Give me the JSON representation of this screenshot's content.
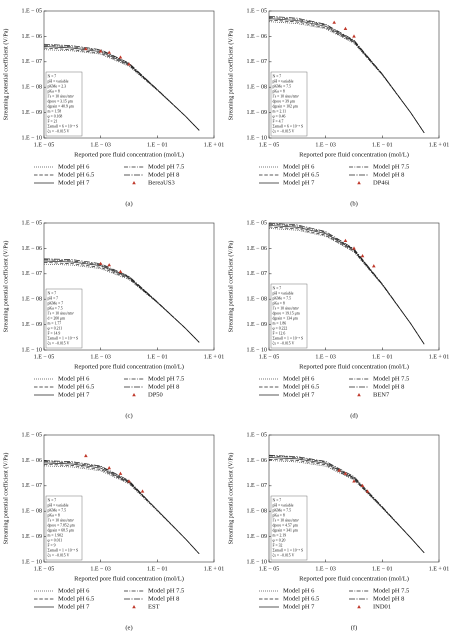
{
  "chart_data": [
    {
      "type": "line",
      "caption": "(a)",
      "ylabel": "Streaming potential coefficient (V/Pa)",
      "xlabel": "Reported pore fluid concentration (mol/L)",
      "xscale": "log",
      "yscale": "log",
      "xlim": [
        1e-05,
        10
      ],
      "ylim": [
        1e-10,
        1e-05
      ],
      "xticks": [
        {
          "value": 1e-05,
          "label": "1.E − 05"
        },
        {
          "value": 0.001,
          "label": "1.E − 03"
        },
        {
          "value": 0.1,
          "label": "1.E − 01"
        },
        {
          "value": 10,
          "label": "1.E + 01"
        }
      ],
      "yticks": [
        {
          "value": 1e-05,
          "label": "1.E − 05"
        },
        {
          "value": 1e-06,
          "label": "1.E − 06"
        },
        {
          "value": 1e-07,
          "label": "1.E − 07"
        },
        {
          "value": 1e-08,
          "label": "1.E − 08"
        },
        {
          "value": 1e-09,
          "label": "1.E − 09"
        },
        {
          "value": 1e-10,
          "label": "1.E − 10"
        }
      ],
      "params": [
        "N = 7",
        "pH = variable",
        "pKMe = 2.3",
        "pKa = 8",
        "Γs = 10 sites/nm²",
        "dpore = 3.15 μm",
        "dgrain = 40.9 μm",
        "m = 1.58",
        "φ = 0.168",
        "F = 21",
        "Σsmall = 6 × 10⁻⁹ S",
        "ζx = −0.015 V"
      ],
      "x": [
        1e-05,
        0.0001,
        0.001,
        0.01,
        0.1,
        1,
        3
      ],
      "series": [
        {
          "name": "Model pH 6",
          "style": "dotted",
          "color": "#222222",
          "values": [
            3e-07,
            2.7e-07,
            2e-07,
            6.7e-08,
            7.5e-09,
            7.1e-10,
            2e-10
          ]
        },
        {
          "name": "Model pH 6.5",
          "style": "dashed",
          "color": "#222222",
          "values": [
            3.5e-07,
            3e-07,
            2.2e-07,
            7.3e-08,
            7.7e-09,
            7.1e-10,
            2e-10
          ]
        },
        {
          "name": "Model pH 7",
          "style": "solid",
          "color": "#222222",
          "values": [
            4e-07,
            3.5e-07,
            2.5e-07,
            7.9e-08,
            7.9e-09,
            7.1e-10,
            2e-10
          ]
        },
        {
          "name": "Model pH 7.5",
          "style": "dashdot",
          "color": "#222222",
          "values": [
            4.5e-07,
            3.9e-07,
            2.8e-07,
            8.5e-08,
            8.1e-09,
            7.1e-10,
            2e-10
          ]
        },
        {
          "name": "Model pH 8",
          "style": "longdashdot",
          "color": "#222222",
          "values": [
            4.9e-07,
            4.3e-07,
            3e-07,
            8.9e-08,
            8.2e-09,
            7.1e-10,
            2e-10
          ]
        }
      ],
      "samples": {
        "name": "BereaUS3",
        "color": "#c0392b",
        "x": [
          0.0003,
          0.001,
          0.002,
          0.005,
          0.01
        ],
        "values": [
          3.2e-07,
          2.6e-07,
          2.3e-07,
          1.5e-07,
          8e-08
        ]
      }
    },
    {
      "type": "line",
      "caption": "(b)",
      "ylabel": "Streaming potential coefficient (V/Pa)",
      "xlabel": "Reported pore fluid concentration (mol/L)",
      "xscale": "log",
      "yscale": "log",
      "xlim": [
        1e-05,
        10
      ],
      "ylim": [
        1e-10,
        1e-05
      ],
      "xticks": [
        {
          "value": 1e-05,
          "label": "1.E − 05"
        },
        {
          "value": 0.001,
          "label": "1.E − 03"
        },
        {
          "value": 0.1,
          "label": "1.E − 01"
        },
        {
          "value": 10,
          "label": "1.E + 01"
        }
      ],
      "yticks": [
        {
          "value": 1e-05,
          "label": "1.E − 05"
        },
        {
          "value": 1e-06,
          "label": "1.E − 06"
        },
        {
          "value": 1e-07,
          "label": "1.E − 07"
        },
        {
          "value": 1e-08,
          "label": "1.E − 08"
        },
        {
          "value": 1e-09,
          "label": "1.E − 09"
        },
        {
          "value": 1e-10,
          "label": "1.E − 10"
        }
      ],
      "params": [
        "N = 7",
        "pH = variable",
        "pKMe = 7.5",
        "pKa = 8",
        "Γs = 10 sites/nm²",
        "dpore = 39 μm",
        "dgrain = 102 μm",
        "m = 2.11",
        "φ = 0.46",
        "F = 4.7",
        "Σsmall = 6 × 10⁻⁹ S",
        "ζx = −0.015 V"
      ],
      "x": [
        1e-05,
        0.0001,
        0.001,
        0.01,
        0.1,
        1,
        3
      ],
      "series": [
        {
          "name": "Model pH 6",
          "style": "dotted",
          "color": "#222222",
          "values": [
            3.8e-06,
            3.2e-06,
            2e-06,
            5.4e-07,
            3e-08,
            1e-09,
            1.6e-10
          ]
        },
        {
          "name": "Model pH 6.5",
          "style": "dashed",
          "color": "#222222",
          "values": [
            4.4e-06,
            3.7e-06,
            2.2e-06,
            5.8e-07,
            3.1e-08,
            1e-09,
            1.6e-10
          ]
        },
        {
          "name": "Model pH 7",
          "style": "solid",
          "color": "#222222",
          "values": [
            5e-06,
            4.2e-06,
            2.5e-06,
            6.3e-07,
            3.2e-08,
            1e-09,
            1.6e-10
          ]
        },
        {
          "name": "Model pH 7.5",
          "style": "dashdot",
          "color": "#222222",
          "values": [
            5.6e-06,
            4.7e-06,
            2.8e-06,
            6.7e-07,
            3.3e-08,
            1e-09,
            1.6e-10
          ]
        },
        {
          "name": "Model pH 8",
          "style": "longdashdot",
          "color": "#222222",
          "values": [
            6.2e-06,
            5.2e-06,
            3e-06,
            7.1e-07,
            3.3e-08,
            1e-09,
            1.6e-10
          ]
        }
      ],
      "samples": {
        "name": "DP46i",
        "color": "#c0392b",
        "x": [
          0.002,
          0.005,
          0.01
        ],
        "values": [
          3.5e-06,
          2e-06,
          1e-06
        ]
      }
    },
    {
      "type": "line",
      "caption": "(c)",
      "ylabel": "Streaming potential coefficient (V/Pa)",
      "xlabel": "Reported pore fluid concentration (mol/L)",
      "xscale": "log",
      "yscale": "log",
      "xlim": [
        1e-05,
        10
      ],
      "ylim": [
        1e-10,
        1e-05
      ],
      "xticks": [
        {
          "value": 1e-05,
          "label": "1.E − 05"
        },
        {
          "value": 0.001,
          "label": "1.E − 03"
        },
        {
          "value": 0.1,
          "label": "1.E − 01"
        },
        {
          "value": 10,
          "label": "1.E + 01"
        }
      ],
      "yticks": [
        {
          "value": 1e-05,
          "label": "1.E − 05"
        },
        {
          "value": 1e-06,
          "label": "1.E − 06"
        },
        {
          "value": 1e-07,
          "label": "1.E − 07"
        },
        {
          "value": 1e-08,
          "label": "1.E − 08"
        },
        {
          "value": 1e-09,
          "label": "1.E − 09"
        },
        {
          "value": 1e-10,
          "label": "1.E − 10"
        }
      ],
      "params": [
        "N = 7",
        "pH = 7",
        "pKMe = 7",
        "pKa = 7.5",
        "Γs = 10 sites/nm²",
        "d = 200 μm",
        "m = 1.77",
        "φ = 0.211",
        "F = 14.9",
        "Σsmall = 1 × 10⁻⁹ S",
        "ζx = −0.015 V"
      ],
      "x": [
        1e-05,
        0.0001,
        0.001,
        0.01,
        0.1,
        1,
        3
      ],
      "series": [
        {
          "name": "Model pH 6",
          "style": "dotted",
          "color": "#222222",
          "values": [
            2.4e-07,
            2.2e-07,
            1.6e-07,
            6e-08,
            7.2e-09,
            7e-10,
            2e-10
          ]
        },
        {
          "name": "Model pH 6.5",
          "style": "dashed",
          "color": "#222222",
          "values": [
            2.8e-07,
            2.5e-07,
            1.8e-07,
            6.5e-08,
            7.4e-09,
            7e-10,
            2e-10
          ]
        },
        {
          "name": "Model pH 7",
          "style": "solid",
          "color": "#222222",
          "values": [
            3.2e-07,
            2.9e-07,
            2.1e-07,
            7.1e-08,
            7.6e-09,
            7e-10,
            2e-10
          ]
        },
        {
          "name": "Model pH 7.5",
          "style": "dashdot",
          "color": "#222222",
          "values": [
            3.6e-07,
            3.2e-07,
            2.3e-07,
            7.6e-08,
            7.8e-09,
            7e-10,
            2e-10
          ]
        },
        {
          "name": "Model pH 8",
          "style": "longdashdot",
          "color": "#222222",
          "values": [
            3.9e-07,
            3.6e-07,
            2.5e-07,
            8e-08,
            7.9e-09,
            7e-10,
            2e-10
          ]
        }
      ],
      "samples": {
        "name": "DP50",
        "color": "#c0392b",
        "x": [
          0.001,
          0.002,
          0.005
        ],
        "values": [
          2.5e-07,
          2.2e-07,
          1.2e-07
        ]
      }
    },
    {
      "type": "line",
      "caption": "(d)",
      "ylabel": "Streaming potential coefficient (V/Pa)",
      "xlabel": "Reported pore fluid concentration (mol/L)",
      "xscale": "log",
      "yscale": "log",
      "xlim": [
        1e-05,
        10
      ],
      "ylim": [
        1e-10,
        1e-05
      ],
      "xticks": [
        {
          "value": 1e-05,
          "label": "1.E − 05"
        },
        {
          "value": 0.001,
          "label": "1.E − 03"
        },
        {
          "value": 0.1,
          "label": "1.E − 01"
        },
        {
          "value": 10,
          "label": "1.E + 01"
        }
      ],
      "yticks": [
        {
          "value": 1e-05,
          "label": "1.E − 05"
        },
        {
          "value": 1e-06,
          "label": "1.E − 06"
        },
        {
          "value": 1e-07,
          "label": "1.E − 07"
        },
        {
          "value": 1e-08,
          "label": "1.E − 08"
        },
        {
          "value": 1e-09,
          "label": "1.E − 09"
        },
        {
          "value": 1e-10,
          "label": "1.E − 10"
        }
      ],
      "params": [
        "N = 7",
        "pH = variable",
        "pKMe = 7.5",
        "pKa = 8",
        "Γs = 10 sites/nm²",
        "dpore = 19.15 μm",
        "dgrain = 134 μm",
        "m = 1.86",
        "φ = 0.222",
        "F = 12.6",
        "Σsmall = 1 × 10⁻⁹ S",
        "ζx = −0.015 V"
      ],
      "x": [
        1e-05,
        0.0001,
        0.001,
        0.01,
        0.1,
        1,
        3
      ],
      "series": [
        {
          "name": "Model pH 6",
          "style": "dotted",
          "color": "#222222",
          "values": [
            6.1e-06,
            5.2e-06,
            3e-06,
            7.2e-07,
            3.6e-08,
            1.1e-09,
            1.7e-10
          ]
        },
        {
          "name": "Model pH 6.5",
          "style": "dashed",
          "color": "#222222",
          "values": [
            7e-06,
            5.9e-06,
            3.3e-06,
            7.8e-07,
            3.7e-08,
            1.1e-09,
            1.7e-10
          ]
        },
        {
          "name": "Model pH 7",
          "style": "solid",
          "color": "#222222",
          "values": [
            8e-06,
            6.8e-06,
            3.8e-06,
            8.5e-07,
            3.8e-08,
            1.1e-09,
            1.7e-10
          ]
        },
        {
          "name": "Model pH 7.5",
          "style": "dashdot",
          "color": "#222222",
          "values": [
            9e-06,
            7.6e-06,
            4.2e-06,
            9.1e-07,
            3.9e-08,
            1.1e-09,
            1.7e-10
          ]
        },
        {
          "name": "Model pH 8",
          "style": "longdashdot",
          "color": "#222222",
          "values": [
            9.8e-06,
            8.4e-06,
            4.6e-06,
            9.6e-07,
            4e-08,
            1.1e-09,
            1.7e-10
          ]
        }
      ],
      "samples": {
        "name": "BEN7",
        "color": "#c0392b",
        "x": [
          0.005,
          0.01,
          0.02,
          0.05
        ],
        "values": [
          2e-06,
          1e-06,
          5e-07,
          2e-07
        ]
      }
    },
    {
      "type": "line",
      "caption": "(e)",
      "ylabel": "Streaming potential coefficient (V/Pa)",
      "xlabel": "Reported pore fluid concentration (mol/L)",
      "xscale": "log",
      "yscale": "log",
      "xlim": [
        1e-05,
        10
      ],
      "ylim": [
        1e-10,
        1e-05
      ],
      "xticks": [
        {
          "value": 1e-05,
          "label": "1.E − 05"
        },
        {
          "value": 0.001,
          "label": "1.E − 03"
        },
        {
          "value": 0.1,
          "label": "1.E − 01"
        },
        {
          "value": 10,
          "label": "1.E + 01"
        }
      ],
      "yticks": [
        {
          "value": 1e-05,
          "label": "1.E − 05"
        },
        {
          "value": 1e-06,
          "label": "1.E − 06"
        },
        {
          "value": 1e-07,
          "label": "1.E − 07"
        },
        {
          "value": 1e-08,
          "label": "1.E − 08"
        },
        {
          "value": 1e-09,
          "label": "1.E − 09"
        },
        {
          "value": 1e-10,
          "label": "1.E − 10"
        }
      ],
      "params": [
        "N = 7",
        "pH = variable",
        "pKMe = 7.5",
        "pKa = 8",
        "Γs = 10 sites/nm²",
        "dpore = 7.852 μm",
        "dgrain = 68.5 μm",
        "m = 1.902",
        "φ = 0.011",
        "F = 9",
        "Σsmall = 1 × 10⁻⁹ S",
        "ζx = −0.015 V"
      ],
      "x": [
        1e-05,
        0.0001,
        0.001,
        0.01,
        0.1,
        1,
        3
      ],
      "series": [
        {
          "name": "Model pH 6",
          "style": "dotted",
          "color": "#222222",
          "values": [
            6.1e-07,
            5.5e-07,
            3.9e-07,
            1.2e-07,
            1e-08,
            8e-10,
            2.1e-10
          ]
        },
        {
          "name": "Model pH 6.5",
          "style": "dashed",
          "color": "#222222",
          "values": [
            7e-07,
            6.3e-07,
            4.4e-07,
            1.3e-07,
            1.1e-08,
            8e-10,
            2.1e-10
          ]
        },
        {
          "name": "Model pH 7",
          "style": "solid",
          "color": "#222222",
          "values": [
            8e-07,
            7.2e-07,
            5e-07,
            1.4e-07,
            1.1e-08,
            8e-10,
            2.1e-10
          ]
        },
        {
          "name": "Model pH 7.5",
          "style": "dashdot",
          "color": "#222222",
          "values": [
            9e-07,
            8.1e-07,
            5.6e-07,
            1.5e-07,
            1.1e-08,
            8e-10,
            2.1e-10
          ]
        },
        {
          "name": "Model pH 8",
          "style": "longdashdot",
          "color": "#222222",
          "values": [
            9.8e-07,
            8.9e-07,
            6e-07,
            1.6e-07,
            1.1e-08,
            8e-10,
            2.1e-10
          ]
        }
      ],
      "samples": {
        "name": "EST",
        "color": "#c0392b",
        "x": [
          0.0003,
          0.002,
          0.005,
          0.01,
          0.03
        ],
        "values": [
          1.5e-06,
          5e-07,
          3e-07,
          1.5e-07,
          6e-08
        ]
      }
    },
    {
      "type": "line",
      "caption": "(f)",
      "ylabel": "Streaming potential coefficient (V/Pa)",
      "xlabel": "Reported pore fluid concentration (mol/L)",
      "xscale": "log",
      "yscale": "log",
      "xlim": [
        1e-05,
        10
      ],
      "ylim": [
        1e-10,
        1e-05
      ],
      "xticks": [
        {
          "value": 1e-05,
          "label": "1.E − 05"
        },
        {
          "value": 0.001,
          "label": "1.E − 03"
        },
        {
          "value": 0.1,
          "label": "1.E − 01"
        },
        {
          "value": 10,
          "label": "1.E + 01"
        }
      ],
      "yticks": [
        {
          "value": 1e-05,
          "label": "1.E − 05"
        },
        {
          "value": 1e-06,
          "label": "1.E − 06"
        },
        {
          "value": 1e-07,
          "label": "1.E − 07"
        },
        {
          "value": 1e-08,
          "label": "1.E − 08"
        },
        {
          "value": 1e-09,
          "label": "1.E − 09"
        },
        {
          "value": 1e-10,
          "label": "1.E − 10"
        }
      ],
      "params": [
        "N = 7",
        "pH = variable",
        "pKMe = 7.5",
        "pKa = 8",
        "Γs = 10 sites/nm²",
        "dpore = 4.57 μm",
        "dgrain = 341 μm",
        "m = 2.19",
        "φ = 0.20",
        "F = 32",
        "Σsmall = 1 × 10⁻⁹ S",
        "ζx = −0.015 V"
      ],
      "x": [
        1e-05,
        0.0001,
        0.001,
        0.01,
        0.1,
        1,
        3
      ],
      "series": [
        {
          "name": "Model pH 6",
          "style": "dotted",
          "color": "#222222",
          "values": [
            9.9e-07,
            8.7e-07,
            5.9e-07,
            1.7e-07,
            1.3e-08,
            9e-10,
            2.3e-10
          ]
        },
        {
          "name": "Model pH 6.5",
          "style": "dashed",
          "color": "#222222",
          "values": [
            1.1e-06,
            1e-06,
            6.7e-07,
            1.8e-07,
            1.4e-08,
            9e-10,
            2.3e-10
          ]
        },
        {
          "name": "Model pH 7",
          "style": "solid",
          "color": "#222222",
          "values": [
            1.3e-06,
            1.15e-06,
            7.6e-07,
            2e-07,
            1.4e-08,
            9e-10,
            2.3e-10
          ]
        },
        {
          "name": "Model pH 7.5",
          "style": "dashdot",
          "color": "#222222",
          "values": [
            1.5e-06,
            1.3e-06,
            8.4e-07,
            2.1e-07,
            1.4e-08,
            9e-10,
            2.3e-10
          ]
        },
        {
          "name": "Model pH 8",
          "style": "longdashdot",
          "color": "#222222",
          "values": [
            1.6e-06,
            1.4e-06,
            9.1e-07,
            2.3e-07,
            1.5e-08,
            9e-10,
            2.3e-10
          ]
        }
      ],
      "samples": {
        "name": "IND01",
        "color": "#c0392b",
        "x": [
          0.003,
          0.005,
          0.01,
          0.02,
          0.03
        ],
        "values": [
          4e-07,
          3e-07,
          1.5e-07,
          1e-07,
          6e-08
        ]
      }
    }
  ]
}
